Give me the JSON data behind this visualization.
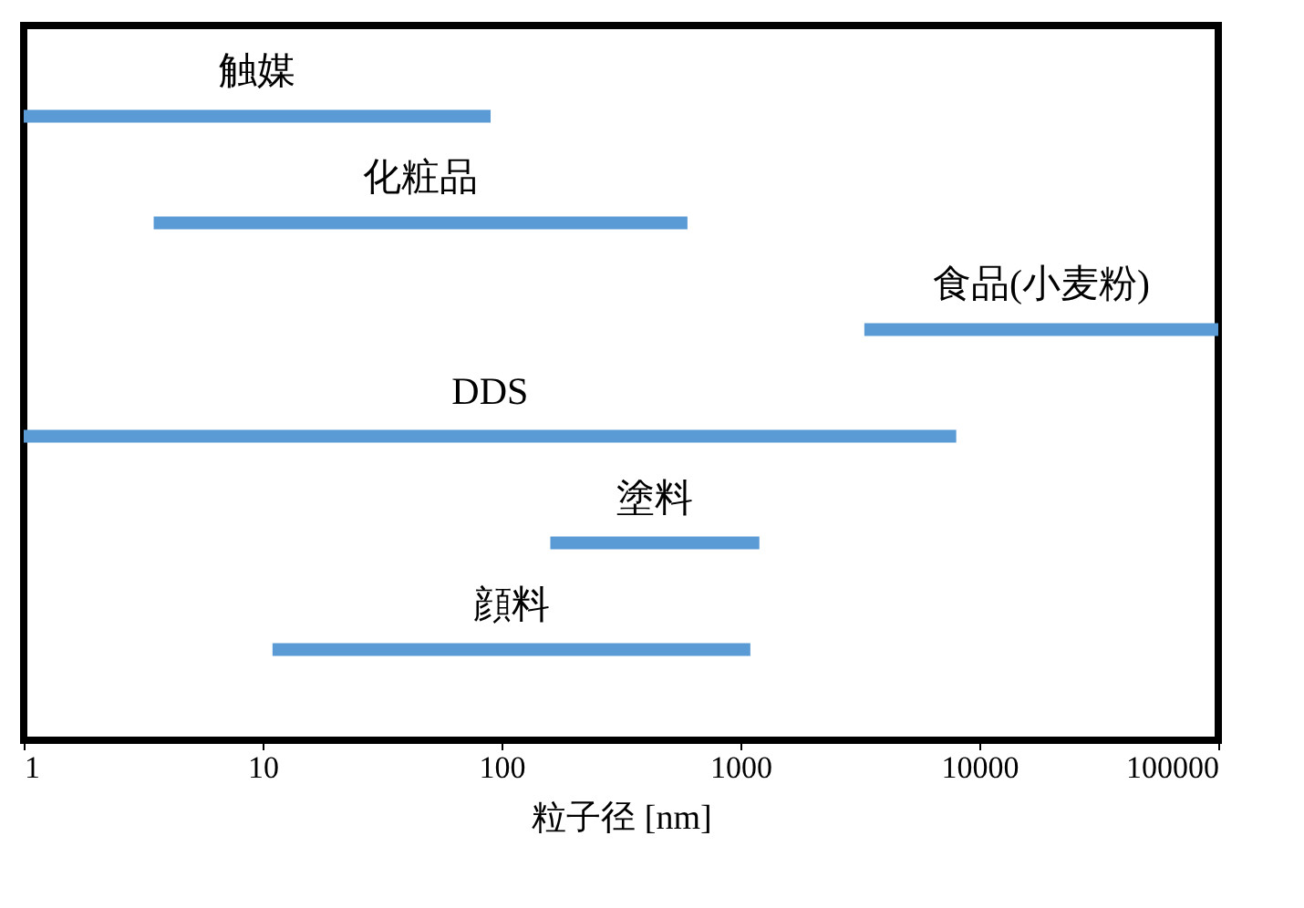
{
  "chart_data": {
    "type": "bar",
    "orientation": "horizontal",
    "log": "x",
    "xlabel": "粒子径 [nm]",
    "categories": [
      "触媒",
      "化粧品",
      "食品(小麦粉)",
      "DDS",
      "塗料",
      "顔料"
    ],
    "base": [
      1,
      3.5,
      3300,
      1,
      160,
      11
    ],
    "values": [
      89,
      596.5,
      96700,
      7999,
      1040,
      1089
    ],
    "color": "#5b9bd5",
    "xlim": [
      1,
      100000
    ],
    "xticks": [
      1,
      10,
      100,
      1000,
      10000,
      100000
    ],
    "tick_labels": "x",
    "grid": false
  }
}
